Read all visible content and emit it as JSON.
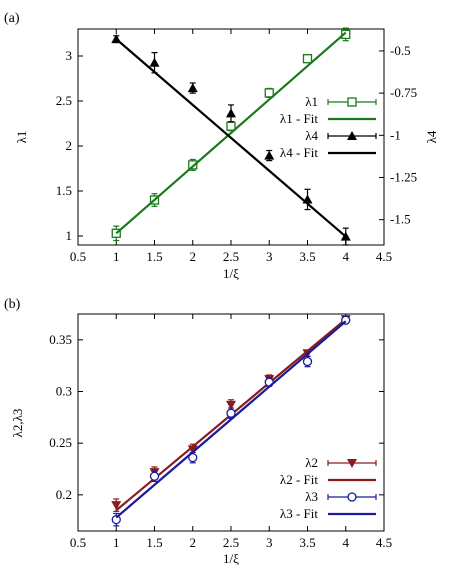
{
  "chart_data": [
    {
      "panel_label": "(a)",
      "type": "line",
      "xlabel": "1/ξ",
      "ylabel": "λ1",
      "y2label": "λ4",
      "xlim": [
        0.5,
        4.5
      ],
      "ylim": [
        0.9,
        3.3
      ],
      "y2lim": [
        -1.65,
        -0.37
      ],
      "xticks": [
        "0.5",
        "1",
        "1.5",
        "2",
        "2.5",
        "3",
        "3.5",
        "4",
        "4.5"
      ],
      "yticks": [
        "1",
        "1.5",
        "2",
        "2.5",
        "3"
      ],
      "y2ticks": [
        "-0.5",
        "-0.75",
        "-1",
        "-1.25",
        "-1.5"
      ],
      "legend_position": "right",
      "series": [
        {
          "name": "λ1",
          "axis": "left",
          "kind": "points",
          "marker": "open-square",
          "color": "#1a7a1a",
          "x": [
            1,
            1.5,
            2,
            2.5,
            3,
            3.5,
            4
          ],
          "y": [
            1.03,
            1.4,
            1.79,
            2.22,
            2.59,
            2.97,
            3.24
          ],
          "err": [
            0.08,
            0.07,
            0.06,
            0.05,
            0.05,
            0.03,
            0.07
          ]
        },
        {
          "name": "λ1 - Fit",
          "axis": "left",
          "kind": "line",
          "color": "#1a7a1a",
          "x": [
            1,
            4
          ],
          "y": [
            1.03,
            3.26
          ]
        },
        {
          "name": "λ4",
          "axis": "right",
          "kind": "points",
          "marker": "filled-triangle",
          "color": "#000000",
          "x": [
            1,
            1.5,
            2,
            2.5,
            3,
            3.5,
            4
          ],
          "y": [
            -0.43,
            -0.57,
            -0.72,
            -0.87,
            -1.12,
            -1.38,
            -1.6
          ],
          "err": [
            0.02,
            0.06,
            0.03,
            0.05,
            0.03,
            0.06,
            0.05
          ]
        },
        {
          "name": "λ4 - Fit",
          "axis": "right",
          "kind": "line",
          "color": "#000000",
          "x": [
            1,
            4
          ],
          "y": [
            -0.43,
            -1.6
          ]
        }
      ]
    },
    {
      "panel_label": "(b)",
      "type": "line",
      "xlabel": "1/ξ",
      "ylabel": "λ2,λ3",
      "xlim": [
        0.5,
        4.5
      ],
      "ylim": [
        0.165,
        0.375
      ],
      "xticks": [
        "0.5",
        "1",
        "1.5",
        "2",
        "2.5",
        "3",
        "3.5",
        "4",
        "4.5"
      ],
      "yticks": [
        "0.2",
        "0.25",
        "0.3",
        "0.35"
      ],
      "legend_position": "bottom-right",
      "series": [
        {
          "name": "λ2",
          "kind": "points",
          "marker": "filled-down-triangle",
          "color": "#8b1a1a",
          "x": [
            1,
            1.5,
            2,
            2.5,
            3,
            3.5,
            4
          ],
          "y": [
            0.19,
            0.222,
            0.244,
            0.287,
            0.312,
            0.337,
            0.37
          ],
          "err": [
            0.006,
            0.005,
            0.005,
            0.005,
            0.004,
            0.003,
            0.003
          ]
        },
        {
          "name": "λ2 - Fit",
          "kind": "line",
          "color": "#8b1a1a",
          "x": [
            1,
            4
          ],
          "y": [
            0.185,
            0.37
          ]
        },
        {
          "name": "λ3",
          "kind": "points",
          "marker": "open-circle",
          "color": "#1a1a9c",
          "x": [
            1,
            1.5,
            2,
            2.5,
            3,
            3.5,
            4
          ],
          "y": [
            0.176,
            0.218,
            0.236,
            0.279,
            0.309,
            0.329,
            0.369
          ],
          "err": [
            0.006,
            0.005,
            0.005,
            0.005,
            0.004,
            0.005,
            0.003
          ]
        },
        {
          "name": "λ3 - Fit",
          "kind": "line",
          "color": "#1a1a9c",
          "x": [
            1,
            4
          ],
          "y": [
            0.178,
            0.368
          ]
        }
      ]
    }
  ]
}
